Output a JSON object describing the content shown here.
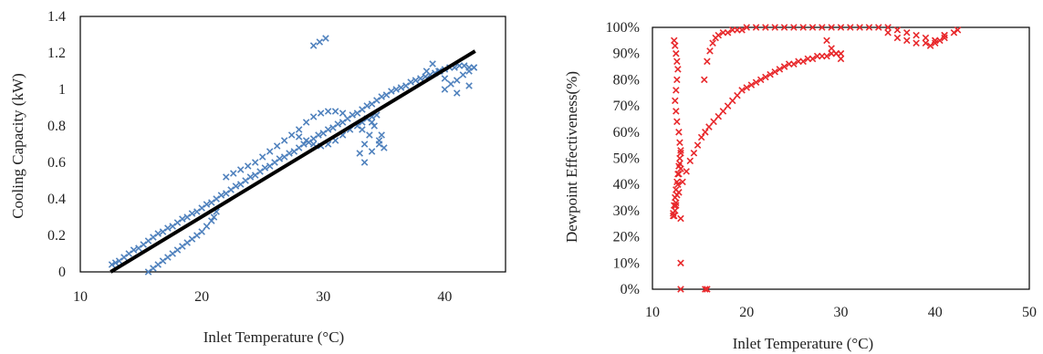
{
  "chart_data": [
    {
      "type": "scatter",
      "title": "",
      "xlabel": "Inlet Temperature (°C)",
      "ylabel": "Cooling Capacity (kW)",
      "xlim": [
        10,
        45
      ],
      "ylim": [
        0,
        1.4
      ],
      "x_ticks": [
        "10",
        "20",
        "30",
        "40"
      ],
      "y_ticks": [
        "0",
        "0.2",
        "0.4",
        "0.6",
        "0.8",
        "1",
        "1.2",
        "1.4"
      ],
      "grid": false,
      "marker": "x",
      "marker_color": "#4f81bd",
      "trendline": {
        "type": "linear",
        "color": "#000000",
        "x": [
          12.5,
          42.5
        ],
        "y": [
          0.0,
          1.21
        ]
      },
      "series": [
        {
          "x": [
            12.6,
            12.9,
            13.2,
            13.6,
            14.0,
            14.4,
            14.8,
            15.2,
            15.6,
            16.0,
            16.4,
            16.8,
            17.2,
            17.6,
            18.0,
            18.4,
            18.8,
            19.2,
            19.6,
            20.0,
            20.4,
            20.8,
            21.2,
            21.6,
            22.0,
            22.4,
            22.8,
            23.2,
            23.6,
            24.0,
            24.4,
            24.8,
            25.2,
            25.6,
            26.0,
            26.4,
            26.8,
            27.2,
            27.6,
            28.0,
            28.4,
            28.8,
            29.2,
            29.6,
            30.0,
            30.4,
            30.8,
            31.2,
            31.6,
            32.0,
            32.4,
            32.8,
            33.2,
            33.6,
            34.0,
            34.4,
            34.8,
            35.2,
            35.6,
            36.0,
            36.4,
            36.8,
            37.2,
            37.6,
            38.0,
            38.4,
            38.8,
            39.2,
            39.6,
            40.0,
            40.4,
            40.8,
            41.2,
            41.6,
            42.0,
            42.4,
            15.6,
            16.0,
            16.4,
            16.8,
            17.2,
            17.6,
            18.0,
            18.4,
            18.8,
            19.2,
            19.6,
            20.0,
            20.4,
            20.8,
            21.0,
            21.2,
            22.0,
            22.6,
            23.2,
            23.8,
            24.4,
            25.0,
            25.6,
            26.2,
            26.8,
            27.4,
            28.0,
            28.6,
            29.2,
            29.8,
            30.4,
            31.0,
            31.6,
            28.0,
            28.6,
            29.2,
            29.8,
            30.4,
            31.0,
            31.6,
            32.2,
            32.8,
            33.2,
            33.6,
            34.0,
            34.4,
            33.0,
            33.4,
            33.8,
            34.2,
            34.6,
            35.0,
            33.4,
            34.0,
            34.6,
            33.2,
            34.0,
            34.8,
            38.5,
            39.0,
            39.5,
            40.0,
            40.5,
            41.0,
            41.5,
            42.0,
            42.4,
            40.0,
            41.0,
            42.0,
            29.2,
            29.7,
            30.2
          ],
          "y": [
            0.04,
            0.05,
            0.06,
            0.08,
            0.1,
            0.12,
            0.13,
            0.15,
            0.17,
            0.19,
            0.21,
            0.22,
            0.24,
            0.25,
            0.27,
            0.29,
            0.3,
            0.32,
            0.33,
            0.35,
            0.37,
            0.38,
            0.4,
            0.42,
            0.43,
            0.45,
            0.47,
            0.48,
            0.5,
            0.52,
            0.53,
            0.55,
            0.57,
            0.58,
            0.6,
            0.62,
            0.63,
            0.65,
            0.66,
            0.68,
            0.7,
            0.71,
            0.73,
            0.75,
            0.76,
            0.78,
            0.79,
            0.81,
            0.82,
            0.84,
            0.86,
            0.87,
            0.89,
            0.91,
            0.92,
            0.94,
            0.96,
            0.97,
            0.99,
            1.0,
            1.01,
            1.02,
            1.04,
            1.05,
            1.06,
            1.07,
            1.08,
            1.09,
            1.1,
            1.11,
            1.12,
            1.12,
            1.13,
            1.13,
            1.12,
            1.12,
            0.0,
            0.02,
            0.04,
            0.06,
            0.08,
            0.1,
            0.12,
            0.14,
            0.16,
            0.18,
            0.2,
            0.22,
            0.25,
            0.28,
            0.3,
            0.33,
            0.52,
            0.54,
            0.56,
            0.58,
            0.6,
            0.63,
            0.66,
            0.69,
            0.72,
            0.75,
            0.78,
            0.82,
            0.85,
            0.87,
            0.88,
            0.88,
            0.87,
            0.74,
            0.72,
            0.7,
            0.69,
            0.7,
            0.72,
            0.75,
            0.78,
            0.8,
            0.82,
            0.84,
            0.85,
            0.86,
            0.65,
            0.7,
            0.75,
            0.8,
            0.7,
            0.68,
            0.6,
            0.66,
            0.72,
            0.78,
            0.82,
            0.75,
            1.1,
            1.14,
            1.1,
            1.06,
            1.03,
            1.05,
            1.08,
            1.1,
            1.12,
            1.0,
            0.98,
            1.02,
            1.24,
            1.26,
            1.28
          ]
        }
      ]
    },
    {
      "type": "scatter",
      "title": "",
      "xlabel": "Inlet Temperature (°C)",
      "ylabel": "Dewpoint Effectiveness(%)",
      "xlim": [
        10,
        50
      ],
      "ylim": [
        0,
        100
      ],
      "x_ticks": [
        "10",
        "20",
        "30",
        "40",
        "50"
      ],
      "y_ticks": [
        "0%",
        "10%",
        "20%",
        "30%",
        "40%",
        "50%",
        "60%",
        "70%",
        "80%",
        "90%",
        "100%"
      ],
      "grid": false,
      "marker": "x",
      "marker_color": "#e8282b",
      "series": [
        {
          "x": [
            12.3,
            12.4,
            12.5,
            12.6,
            12.7,
            12.6,
            12.5,
            12.4,
            12.5,
            12.6,
            12.8,
            12.9,
            13.0,
            12.9,
            12.8,
            12.7,
            12.6,
            12.5,
            12.4,
            12.3,
            12.2,
            12.3,
            12.4,
            12.5,
            12.6,
            12.7,
            12.8,
            12.9,
            13.0,
            13.0,
            13.0,
            12.2,
            12.5,
            12.8,
            13.2,
            13.6,
            14.0,
            14.4,
            14.8,
            15.2,
            15.6,
            16.0,
            16.5,
            17.0,
            17.5,
            18.0,
            18.5,
            19.0,
            19.5,
            20.0,
            20.5,
            21.0,
            21.5,
            22.0,
            22.5,
            23.0,
            23.5,
            24.0,
            24.5,
            25.0,
            25.5,
            26.0,
            26.5,
            27.0,
            27.5,
            28.0,
            28.5,
            29.0,
            29.5,
            30.0,
            15.5,
            15.8,
            16.1,
            16.4,
            16.7,
            17.0,
            17.5,
            18.0,
            18.5,
            19.0,
            19.5,
            20.0,
            21.0,
            22.0,
            23.0,
            24.0,
            25.0,
            26.0,
            27.0,
            28.0,
            29.0,
            30.0,
            31.0,
            32.0,
            33.0,
            34.0,
            35.0,
            36.0,
            37.0,
            38.0,
            39.0,
            40.0,
            41.0,
            42.0,
            42.4,
            28.5,
            29.0,
            29.5,
            30.0,
            35.0,
            36.0,
            37.0,
            38.0,
            39.0,
            40.0,
            41.0,
            39.5,
            40.0,
            40.5,
            41.0,
            13.0,
            13.0,
            15.6,
            15.8
          ],
          "y": [
            95,
            93,
            90,
            87,
            84,
            80,
            76,
            72,
            68,
            64,
            60,
            56,
            52,
            48,
            44,
            40,
            36,
            32,
            30,
            28,
            29,
            32,
            35,
            38,
            41,
            44,
            47,
            50,
            53,
            46,
            27,
            28,
            33,
            37,
            41,
            45,
            49,
            52,
            55,
            58,
            60,
            62,
            64,
            66,
            68,
            70,
            72,
            74,
            76,
            77,
            78,
            79,
            80,
            81,
            82,
            83,
            84,
            85,
            86,
            86,
            87,
            87,
            88,
            88,
            89,
            89,
            89,
            90,
            90,
            90,
            80,
            87,
            91,
            94,
            96,
            97,
            98,
            98,
            99,
            99,
            99,
            100,
            100,
            100,
            100,
            100,
            100,
            100,
            100,
            100,
            100,
            100,
            100,
            100,
            100,
            100,
            98,
            96,
            95,
            94,
            94,
            95,
            97,
            98,
            99,
            95,
            92,
            90,
            88,
            100,
            99,
            98,
            97,
            96,
            95,
            96,
            93,
            94,
            95,
            97,
            10,
            0,
            0,
            0
          ]
        }
      ]
    }
  ]
}
